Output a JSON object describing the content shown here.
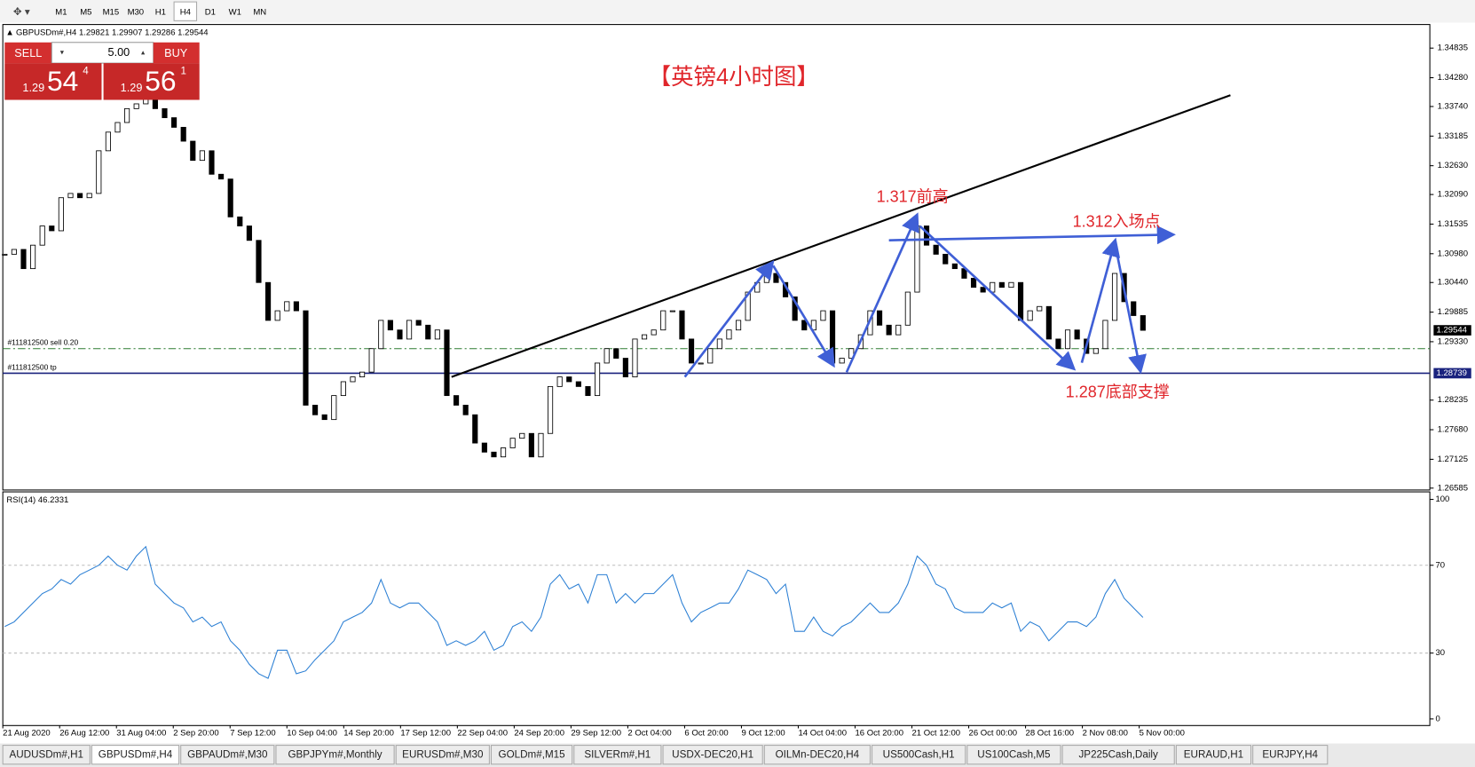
{
  "toolbar": {
    "timeframes": [
      "M1",
      "M5",
      "M15",
      "M30",
      "H1",
      "H4",
      "D1",
      "W1",
      "MN"
    ],
    "active": 5
  },
  "trade_panel": {
    "sell": "SELL",
    "lot": "5.00",
    "buy": "BUY",
    "bid": {
      "big": "1.29",
      "main": "54",
      "sup": "4"
    },
    "ask": {
      "big": "1.29",
      "main": "56",
      "sup": "1"
    }
  },
  "chart_data": [
    {
      "type": "candlestick",
      "header": "GBPUSDm#,H4 1.29821 1.29907 1.29286 1.29544",
      "title": "【英镑4小时图】",
      "closes": [
        1.3097,
        1.3106,
        1.307,
        1.3114,
        1.315,
        1.3141,
        1.3203,
        1.3211,
        1.3203,
        1.3211,
        1.3291,
        1.3326,
        1.3344,
        1.337,
        1.3379,
        1.3388,
        1.337,
        1.3353,
        1.3335,
        1.3309,
        1.3273,
        1.3291,
        1.3247,
        1.3238,
        1.3167,
        1.315,
        1.3123,
        1.3044,
        1.2973,
        1.2991,
        1.3008,
        1.2991,
        1.2814,
        1.2796,
        1.2787,
        1.2832,
        1.2858,
        1.2867,
        1.2876,
        1.292,
        1.2973,
        1.2955,
        1.2938,
        1.2973,
        1.2964,
        1.2938,
        1.2955,
        1.2832,
        1.2814,
        1.2796,
        1.2743,
        1.2726,
        1.2717,
        1.2734,
        1.2752,
        1.2761,
        1.2717,
        1.2761,
        1.2849,
        1.2867,
        1.2858,
        1.2849,
        1.2832,
        1.2893,
        1.292,
        1.2902,
        1.2867,
        1.2938,
        1.2946,
        1.2955,
        1.2991,
        1.2991,
        1.2938,
        1.2893,
        1.2893,
        1.292,
        1.2938,
        1.2955,
        1.2973,
        1.3026,
        1.3044,
        1.3061,
        1.3044,
        1.3017,
        1.2973,
        1.2955,
        1.2973,
        1.2991,
        1.2893,
        1.2902,
        1.292,
        1.2946,
        1.2991,
        1.2964,
        1.2946,
        1.2964,
        1.3026,
        1.315,
        1.3114,
        1.3097,
        1.3079,
        1.307,
        1.3052,
        1.3035,
        1.3026,
        1.3044,
        1.3035,
        1.3044,
        1.2973,
        1.2991,
        1.2999,
        1.2938,
        1.292,
        1.2955,
        1.2938,
        1.2911,
        1.292,
        1.2973,
        1.3061,
        1.3008,
        1.2982,
        1.29544
      ],
      "ylim": [
        1.2655,
        1.3526
      ],
      "yticks": [
        1.34835,
        {
          "value": 1.3428,
          "label": "1.34280"
        },
        {
          "value": 1.3374,
          "label": "1.33740"
        },
        1.33185,
        {
          "value": 1.3263,
          "label": "1.32630"
        },
        {
          "value": 1.3209,
          "label": "1.32090"
        },
        1.31535,
        {
          "value": 1.3098,
          "label": "1.30980"
        },
        {
          "value": 1.3044,
          "label": "1.30440"
        },
        1.29885,
        {
          "value": 1.2933,
          "label": "1.29330"
        },
        1.28235,
        {
          "value": 1.2768,
          "label": "1.27680"
        },
        1.27125,
        1.26585
      ],
      "current_price": 1.29544,
      "levels": [
        {
          "label": "#111812500 sell 0.20",
          "value": 1.292,
          "color": "#2e7d32",
          "style": "dashdot"
        },
        {
          "label": "#111812500 tp",
          "value": 1.28739,
          "color": "#1a237e"
        }
      ],
      "annotations": [
        "1.317前高",
        "1.312入场点",
        "1.287底部支撑"
      ]
    },
    {
      "type": "line",
      "label": "RSI(14) 46.2331",
      "color": "#2b7fd4",
      "values": [
        42.1,
        44.2,
        48.5,
        52.8,
        57.1,
        59.2,
        63.5,
        61.4,
        65.7,
        67.8,
        70.0,
        74.2,
        70.0,
        67.8,
        74.2,
        78.5,
        61.4,
        57.1,
        52.8,
        50.6,
        44.2,
        46.4,
        42.1,
        44.2,
        35.6,
        31.3,
        24.9,
        20.6,
        18.5,
        31.3,
        31.3,
        20.6,
        21.9,
        27.0,
        31.3,
        35.6,
        44.2,
        46.4,
        48.5,
        52.8,
        63.5,
        52.8,
        50.6,
        52.8,
        52.8,
        48.5,
        44.2,
        33.5,
        35.6,
        33.5,
        35.6,
        39.9,
        31.3,
        33.5,
        42.1,
        44.2,
        39.9,
        46.4,
        61.4,
        65.7,
        59.2,
        61.4,
        52.8,
        65.7,
        65.7,
        52.8,
        57.1,
        52.8,
        57.1,
        57.1,
        61.4,
        65.7,
        52.8,
        44.2,
        48.5,
        50.6,
        52.8,
        52.8,
        59.2,
        67.8,
        65.7,
        63.5,
        57.1,
        61.4,
        39.9,
        39.9,
        46.4,
        39.9,
        37.8,
        42.1,
        44.2,
        48.5,
        52.8,
        48.5,
        48.5,
        52.8,
        61.4,
        74.2,
        70.0,
        61.4,
        59.2,
        50.6,
        48.5,
        48.5,
        48.5,
        52.8,
        50.6,
        52.8,
        39.9,
        44.2,
        42.1,
        35.6,
        39.9,
        44.2,
        44.2,
        42.1,
        46.4,
        57.1,
        63.5,
        55.0,
        50.6,
        46.2331
      ],
      "ylim": [
        0,
        100
      ],
      "yticks": [
        0,
        30,
        70,
        100
      ],
      "x_labels": [
        "21 Aug 2020",
        "26 Aug 12:00",
        "31 Aug 04:00",
        "2 Sep 20:00",
        "7 Sep 12:00",
        "10 Sep 04:00",
        "14 Sep 20:00",
        "17 Sep 12:00",
        "22 Sep 04:00",
        "24 Sep 20:00",
        "29 Sep 12:00",
        "2 Oct 04:00",
        "6 Oct 20:00",
        "9 Oct 12:00",
        "14 Oct 04:00",
        "16 Oct 20:00",
        "21 Oct 12:00",
        "26 Oct 00:00",
        "28 Oct 16:00",
        "2 Nov 08:00",
        "5 Nov 00:00"
      ]
    }
  ],
  "tabs": {
    "items": [
      "AUDUSDm#,H1",
      "GBPUSDm#,H4",
      "GBPAUDm#,M30",
      "GBPJPYm#,Monthly",
      "EURUSDm#,M30",
      "GOLDm#,M15",
      "SILVERm#,H1",
      "USDX-DEC20,H1",
      "OILMn-DEC20,H4",
      "US500Cash,H1",
      "US100Cash,M5",
      "JP225Cash,Daily",
      "EURAUD,H1",
      "EURJPY,H4"
    ],
    "active": 1
  }
}
